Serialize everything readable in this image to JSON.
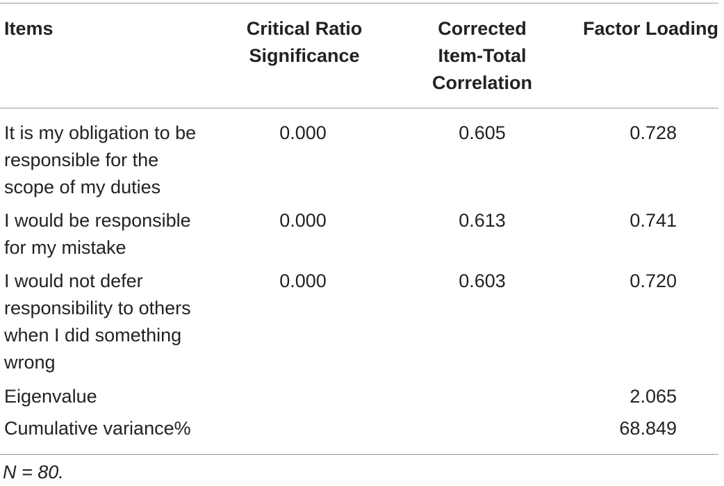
{
  "table": {
    "headers": {
      "items": "Items",
      "critical_ratio": [
        "Critical Ratio",
        "Significance"
      ],
      "corrected": [
        "Corrected",
        "Item-Total",
        "Correlation"
      ],
      "factor_loading": "Factor Loading"
    },
    "rows": [
      {
        "item_lines": [
          "It is my obligation to be",
          "responsible for the",
          "scope of my duties"
        ],
        "critical_ratio": "0.000",
        "corrected": "0.605",
        "loading": "0.728"
      },
      {
        "item_lines": [
          "I would be responsible",
          "for my mistake"
        ],
        "critical_ratio": "0.000",
        "corrected": "0.613",
        "loading": "0.741"
      },
      {
        "item_lines": [
          "I would not defer",
          "responsibility to others",
          "when I did something",
          "wrong"
        ],
        "critical_ratio": "0.000",
        "corrected": "0.603",
        "loading": "0.720"
      }
    ],
    "summary": [
      {
        "label": "Eigenvalue",
        "loading": "2.065"
      },
      {
        "label": "Cumulative variance%",
        "loading": "68.849"
      }
    ],
    "note": "N = 80."
  }
}
